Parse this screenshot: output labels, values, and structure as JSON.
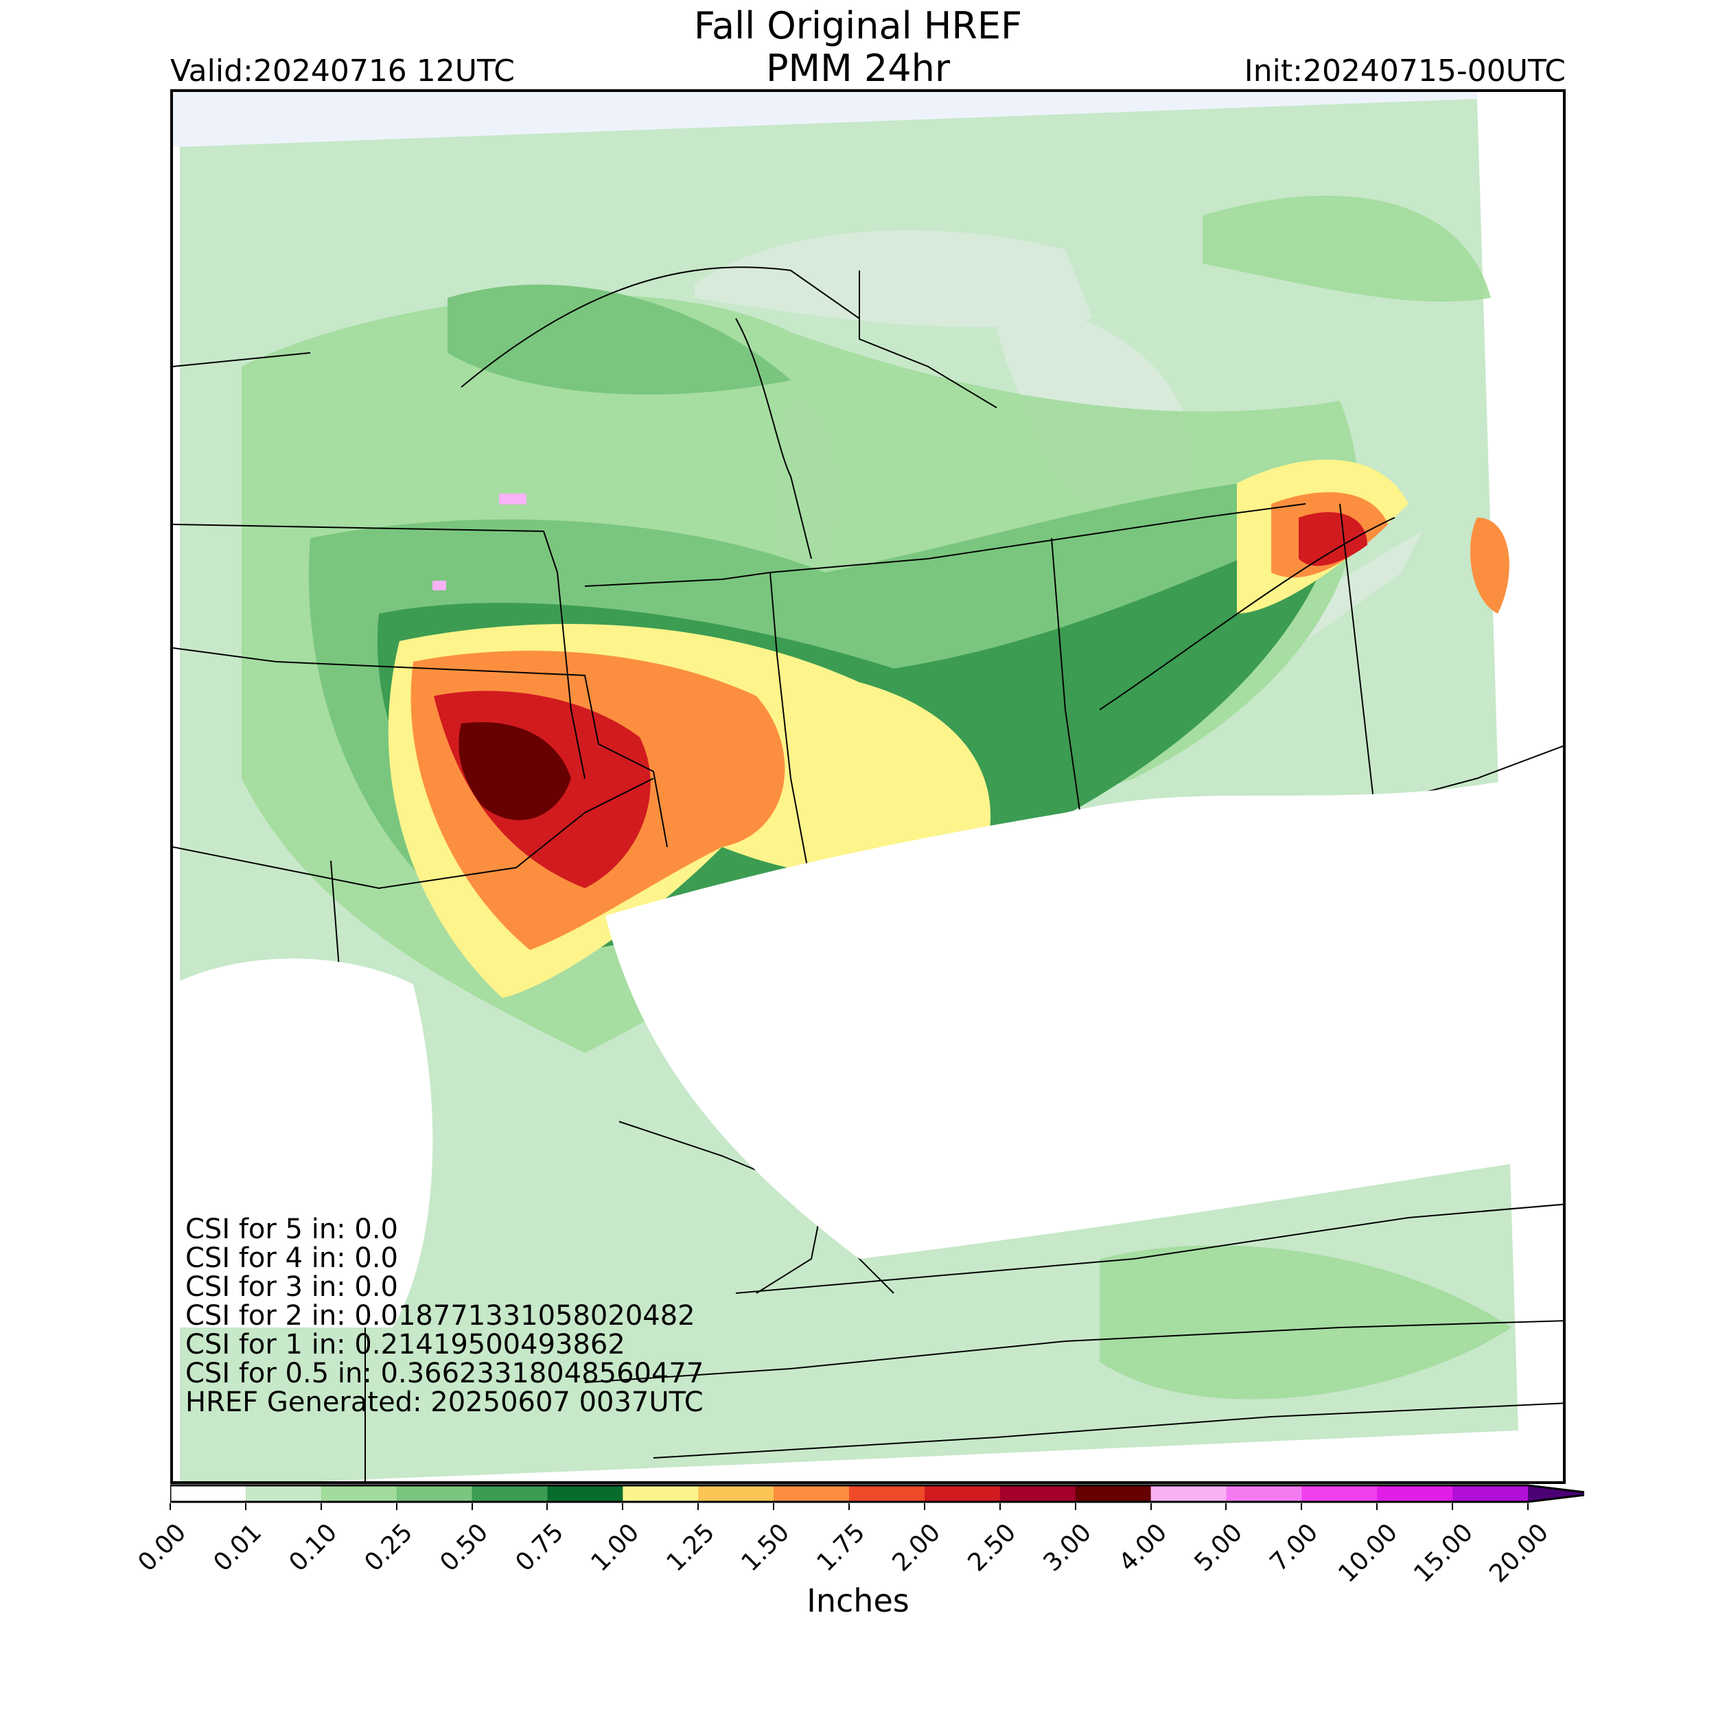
{
  "title": {
    "line1": "Fall Original HREF",
    "line2": "PMM 24hr"
  },
  "valid": "Valid:20240716 12UTC",
  "init": "Init:20240715-00UTC",
  "stats": [
    "CSI for 5 in: 0.0",
    "CSI for 4 in: 0.0",
    "CSI for 3 in: 0.0",
    "CSI for 2 in: 0.018771331058020482",
    "CSI for 1 in: 0.21419500493862",
    "CSI for 0.5 in: 0.36623318048560477",
    "HREF Generated: 20250607 0037UTC"
  ],
  "colorbar": {
    "label": "Inches",
    "ticks": [
      "0.00",
      "0.01",
      "0.10",
      "0.25",
      "0.50",
      "0.75",
      "1.00",
      "1.25",
      "1.50",
      "1.75",
      "2.00",
      "2.50",
      "3.00",
      "4.00",
      "5.00",
      "7.00",
      "10.00",
      "15.00",
      "20.00"
    ],
    "colors": [
      "#ffffff",
      "#c7e8c9",
      "#a2dc9c",
      "#7ac67e",
      "#3c9c52",
      "#076c2c",
      "#fdf48b",
      "#fdc556",
      "#fc8f3f",
      "#f04a2a",
      "#d11b1f",
      "#a3002c",
      "#670000",
      "#f9b2f5",
      "#f47bf2",
      "#f040f0",
      "#e11ee8",
      "#b10fd8",
      "#7b00b4"
    ],
    "extend_arrow_color": "#4b0074"
  },
  "chart_data": {
    "type": "heatmap",
    "title": "Fall Original HREF PMM 24hr",
    "variable": "24-hour precipitation (PMM)",
    "units": "Inches",
    "bins": [
      0.0,
      0.01,
      0.1,
      0.25,
      0.5,
      0.75,
      1.0,
      1.25,
      1.5,
      1.75,
      2.0,
      2.5,
      3.0,
      4.0,
      5.0,
      7.0,
      10.0,
      15.0,
      20.0
    ],
    "max_category": "4.00-5.00",
    "csi": {
      "5 in": 0.0,
      "4 in": 0.0,
      "3 in": 0.0,
      "2 in": 0.018771331058020483,
      "1 in": 0.21419500493862,
      "0.5 in": 0.36623318048560477
    }
  }
}
